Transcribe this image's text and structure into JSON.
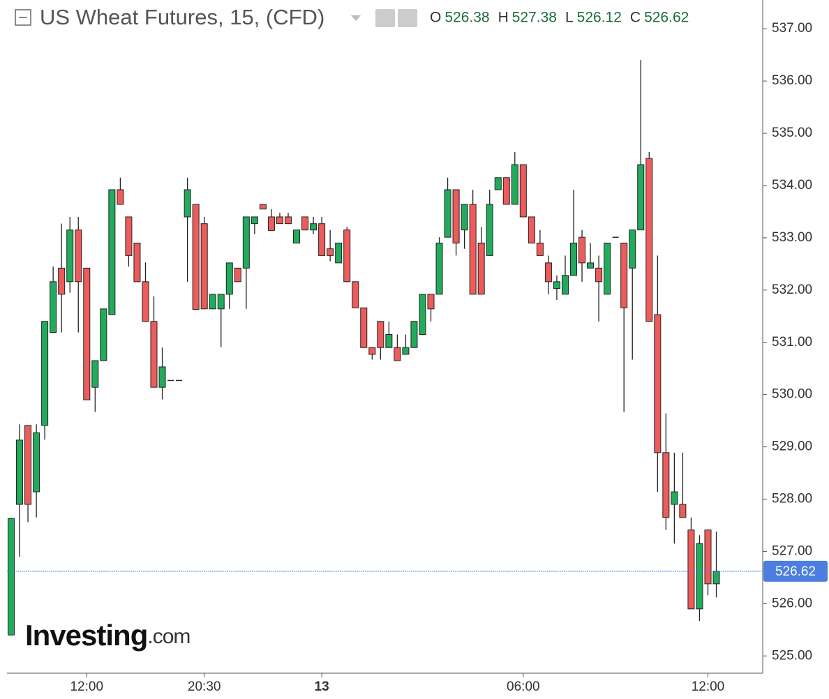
{
  "chart_data": {
    "type": "candlestick",
    "title": "US Wheat Futures, 15, (CFD)",
    "header_ohlc": [
      {
        "label": "O",
        "value": 526.38
      },
      {
        "label": "H",
        "value": 527.38
      },
      {
        "label": "L",
        "value": 526.12
      },
      {
        "label": "C",
        "value": 526.62
      }
    ],
    "header_value_color": "#1e6b3c",
    "watermark": {
      "main": "Investing",
      "suffix": ".com"
    },
    "categories": [
      null,
      null,
      null,
      null,
      null,
      null,
      null,
      null,
      null,
      "12:00",
      null,
      null,
      null,
      null,
      null,
      null,
      null,
      null,
      null,
      null,
      null,
      null,
      null,
      "20:30",
      null,
      null,
      null,
      null,
      null,
      null,
      null,
      null,
      null,
      null,
      null,
      null,
      null,
      "13",
      null,
      null,
      null,
      null,
      null,
      null,
      null,
      null,
      null,
      null,
      null,
      null,
      null,
      null,
      null,
      null,
      null,
      null,
      null,
      null,
      null,
      null,
      null,
      "06:00",
      null,
      null,
      null,
      null,
      null,
      null,
      null,
      null,
      null,
      null,
      null,
      null,
      null,
      null,
      null,
      null,
      null,
      null,
      null,
      null,
      null,
      "12:00",
      null
    ],
    "open": [
      525.4,
      527.9,
      529.41,
      528.14,
      529.41,
      531.19,
      532.42,
      532.16,
      533.15,
      532.42,
      530.14,
      530.65,
      531.53,
      533.92,
      533.4,
      532.9,
      532.16,
      531.4,
      530.14,
      530.27,
      530.27,
      533.4,
      533.64,
      533.27,
      531.64,
      531.64,
      531.92,
      532.42,
      532.42,
      533.27,
      533.64,
      533.4,
      533.4,
      533.4,
      532.9,
      533.4,
      533.15,
      533.27,
      532.79,
      532.52,
      533.15,
      532.16,
      531.66,
      530.9,
      531.4,
      530.9,
      530.9,
      530.77,
      530.9,
      531.15,
      531.92,
      531.92,
      533.01,
      533.92,
      533.15,
      533.64,
      532.9,
      532.66,
      533.92,
      534.15,
      533.64,
      534.4,
      533.4,
      532.9,
      532.52,
      532.03,
      531.92,
      532.28,
      533.01,
      532.42,
      532.42,
      531.92,
      533.01,
      532.9,
      532.42,
      533.15,
      534.52,
      531.53,
      528.89,
      527.9,
      527.9,
      527.41,
      525.9,
      527.41,
      526.38
    ],
    "high": [
      527.63,
      529.43,
      529.41,
      529.43,
      531.4,
      532.45,
      533.27,
      533.4,
      533.4,
      532.42,
      530.65,
      531.64,
      533.92,
      534.15,
      533.4,
      532.9,
      532.53,
      531.88,
      530.9,
      530.27,
      530.27,
      534.15,
      533.64,
      533.4,
      531.92,
      531.92,
      532.52,
      532.42,
      533.4,
      533.4,
      533.64,
      533.55,
      533.48,
      533.48,
      533.15,
      533.4,
      533.4,
      533.4,
      533.15,
      532.9,
      533.21,
      532.16,
      531.66,
      530.9,
      531.4,
      531.4,
      531.15,
      531.15,
      531.4,
      531.92,
      531.92,
      533.01,
      534.15,
      533.92,
      533.64,
      533.92,
      533.21,
      533.92,
      534.15,
      534.15,
      534.64,
      534.4,
      533.4,
      533.15,
      532.66,
      532.28,
      532.66,
      533.92,
      533.15,
      532.9,
      532.66,
      532.9,
      533.01,
      532.9,
      533.15,
      536.4,
      534.64,
      532.66,
      529.64,
      528.89,
      528.89,
      527.65,
      527.31,
      527.41,
      527.38
    ],
    "low": [
      525.4,
      526.9,
      527.56,
      527.65,
      529.14,
      531.19,
      531.19,
      531.95,
      531.19,
      529.9,
      529.67,
      530.65,
      531.53,
      533.64,
      532.45,
      532.16,
      531.4,
      530.14,
      529.91,
      530.27,
      530.27,
      532.16,
      531.63,
      531.64,
      531.64,
      530.91,
      531.64,
      532.16,
      531.64,
      533.07,
      533.55,
      533.14,
      533.27,
      533.27,
      532.9,
      533.15,
      533.07,
      532.66,
      532.55,
      532.52,
      532.16,
      531.66,
      530.9,
      530.67,
      530.67,
      530.9,
      530.65,
      530.77,
      530.9,
      531.15,
      531.4,
      531.92,
      533.01,
      532.66,
      532.79,
      531.92,
      531.92,
      532.66,
      533.92,
      533.64,
      533.64,
      533.4,
      532.9,
      532.66,
      531.92,
      531.81,
      531.92,
      532.28,
      532.16,
      532.42,
      531.4,
      531.92,
      533.01,
      529.67,
      530.67,
      533.15,
      531.4,
      528.14,
      527.41,
      527.15,
      527.65,
      525.9,
      525.67,
      526.16,
      526.12
    ],
    "close": [
      527.63,
      529.13,
      527.9,
      529.27,
      531.4,
      532.16,
      531.92,
      533.15,
      532.16,
      529.9,
      530.65,
      531.64,
      533.92,
      533.64,
      532.66,
      532.16,
      531.4,
      530.14,
      530.53,
      530.27,
      530.27,
      533.92,
      531.63,
      531.64,
      531.92,
      531.92,
      532.52,
      532.16,
      533.4,
      533.4,
      533.55,
      533.14,
      533.27,
      533.27,
      533.15,
      533.15,
      533.27,
      532.66,
      532.66,
      532.9,
      532.16,
      531.66,
      530.9,
      530.77,
      530.9,
      531.15,
      530.65,
      530.9,
      531.4,
      531.92,
      531.64,
      532.9,
      533.92,
      532.9,
      533.64,
      531.92,
      531.92,
      533.64,
      534.15,
      533.64,
      534.4,
      533.4,
      532.9,
      532.66,
      532.16,
      532.16,
      532.28,
      532.9,
      532.52,
      532.52,
      532.16,
      532.9,
      533.01,
      531.66,
      533.15,
      534.4,
      531.4,
      528.89,
      527.65,
      528.14,
      527.65,
      525.9,
      527.15,
      526.38,
      526.62
    ],
    "up_color": "#22ab5c",
    "down_color": "#ee5b5b",
    "last_price": 526.62,
    "last_price_color": "#4b7ede",
    "ylim": [
      524.67,
      537.55
    ],
    "yticks": [
      {
        "value": 525,
        "label": "525.00"
      },
      {
        "value": 526,
        "label": "526.00"
      },
      {
        "value": 527,
        "label": "527.00"
      },
      {
        "value": 528,
        "label": "528.00"
      },
      {
        "value": 529,
        "label": "529.00"
      },
      {
        "value": 530,
        "label": "530.00"
      },
      {
        "value": 531,
        "label": "531.00"
      },
      {
        "value": 532,
        "label": "532.00"
      },
      {
        "value": 533,
        "label": "533.00"
      },
      {
        "value": 534,
        "label": "534.00"
      },
      {
        "value": 535,
        "label": "535.00"
      },
      {
        "value": 536,
        "label": "536.00"
      },
      {
        "value": 537,
        "label": "537.00"
      }
    ]
  }
}
